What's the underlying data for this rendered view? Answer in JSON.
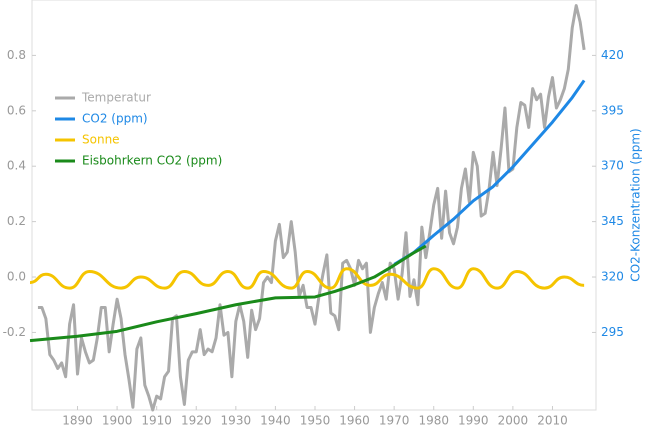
{
  "chart_data": {
    "type": "line",
    "y2label": "CO2-Konzentration (ppm)",
    "xlim": [
      1878.5,
      2021
    ],
    "xticks": [
      1890,
      1900,
      1910,
      1920,
      1930,
      1940,
      1950,
      1960,
      1970,
      1980,
      1990,
      2000,
      2010
    ],
    "ylim": [
      -0.48,
      1.0
    ],
    "yticks": [
      0.8,
      0.6,
      0.4,
      0.2,
      {
        "value": 0,
        "label": "0.0"
      },
      -0.2
    ],
    "y2lim": [
      260,
      445
    ],
    "y2ticks": [
      420,
      395,
      370,
      345,
      320,
      295
    ],
    "legend": "upper-left",
    "series": [
      {
        "name": "Temperatur",
        "color": "#aaaaaa",
        "x": [
          1880,
          1881,
          1882,
          1883,
          1884,
          1885,
          1886,
          1887,
          1888,
          1889,
          1890,
          1891,
          1892,
          1893,
          1894,
          1895,
          1896,
          1897,
          1898,
          1899,
          1900,
          1901,
          1902,
          1903,
          1904,
          1905,
          1906,
          1907,
          1908,
          1909,
          1910,
          1911,
          1912,
          1913,
          1914,
          1915,
          1916,
          1917,
          1918,
          1919,
          1920,
          1921,
          1922,
          1923,
          1924,
          1925,
          1926,
          1927,
          1928,
          1929,
          1930,
          1931,
          1932,
          1933,
          1934,
          1935,
          1936,
          1937,
          1938,
          1939,
          1940,
          1941,
          1942,
          1943,
          1944,
          1945,
          1946,
          1947,
          1948,
          1949,
          1950,
          1951,
          1952,
          1953,
          1954,
          1955,
          1956,
          1957,
          1958,
          1959,
          1960,
          1961,
          1962,
          1963,
          1964,
          1965,
          1966,
          1967,
          1968,
          1969,
          1970,
          1971,
          1972,
          1973,
          1974,
          1975,
          1976,
          1977,
          1978,
          1979,
          1980,
          1981,
          1982,
          1983,
          1984,
          1985,
          1986,
          1987,
          1988,
          1989,
          1990,
          1991,
          1992,
          1993,
          1994,
          1995,
          1996,
          1997,
          1998,
          1999,
          2000,
          2001,
          2002,
          2003,
          2004,
          2005,
          2006,
          2007,
          2008,
          2009,
          2010,
          2011,
          2012,
          2013,
          2014,
          2015,
          2016,
          2017,
          2018
        ],
        "values": [
          -0.11,
          -0.11,
          -0.15,
          -0.28,
          -0.3,
          -0.33,
          -0.31,
          -0.36,
          -0.17,
          -0.1,
          -0.35,
          -0.22,
          -0.27,
          -0.31,
          -0.3,
          -0.22,
          -0.11,
          -0.11,
          -0.27,
          -0.17,
          -0.08,
          -0.15,
          -0.28,
          -0.37,
          -0.47,
          -0.26,
          -0.22,
          -0.39,
          -0.43,
          -0.48,
          -0.43,
          -0.44,
          -0.36,
          -0.34,
          -0.15,
          -0.14,
          -0.36,
          -0.46,
          -0.3,
          -0.27,
          -0.27,
          -0.19,
          -0.28,
          -0.26,
          -0.27,
          -0.22,
          -0.1,
          -0.21,
          -0.2,
          -0.36,
          -0.16,
          -0.1,
          -0.16,
          -0.29,
          -0.12,
          -0.19,
          -0.15,
          -0.02,
          0.0,
          -0.02,
          0.13,
          0.19,
          0.07,
          0.09,
          0.2,
          0.09,
          -0.07,
          -0.03,
          -0.11,
          -0.11,
          -0.17,
          -0.07,
          0.01,
          0.08,
          -0.13,
          -0.14,
          -0.19,
          0.05,
          0.06,
          0.03,
          -0.03,
          0.06,
          0.03,
          0.05,
          -0.2,
          -0.11,
          -0.06,
          -0.02,
          -0.08,
          0.05,
          0.03,
          -0.08,
          0.01,
          0.16,
          -0.07,
          -0.01,
          -0.1,
          0.18,
          0.07,
          0.16,
          0.26,
          0.32,
          0.14,
          0.31,
          0.16,
          0.12,
          0.18,
          0.32,
          0.39,
          0.27,
          0.45,
          0.4,
          0.22,
          0.23,
          0.32,
          0.45,
          0.33,
          0.46,
          0.61,
          0.38,
          0.39,
          0.54,
          0.63,
          0.62,
          0.54,
          0.68,
          0.64,
          0.66,
          0.54,
          0.65,
          0.72,
          0.61,
          0.64,
          0.68,
          0.75,
          0.9,
          0.98,
          0.92,
          0.82
        ]
      },
      {
        "name": "CO2 (ppm)",
        "color": "#1e88e5",
        "axis": "y2",
        "x": [
          1970,
          1975,
          1980,
          1985,
          1990,
          1995,
          2000,
          2005,
          2010,
          2015,
          2018
        ],
        "values": [
          325.7,
          331.1,
          338.8,
          346.1,
          354.4,
          360.8,
          369.7,
          379.8,
          389.9,
          401.0,
          408.7
        ]
      },
      {
        "name": "Sonne",
        "color": "#f5c400",
        "x": [
          1878,
          1882,
          1888,
          1893,
          1901,
          1906,
          1912,
          1917,
          1923,
          1928,
          1933,
          1937,
          1944,
          1948,
          1954,
          1958,
          1964,
          1969,
          1976,
          1980,
          1986,
          1990,
          1996,
          2001,
          2008,
          2013,
          2018
        ],
        "values": [
          -0.02,
          0.01,
          -0.04,
          0.02,
          -0.04,
          0.0,
          -0.04,
          0.02,
          -0.03,
          0.02,
          -0.04,
          0.02,
          -0.04,
          0.02,
          -0.04,
          0.03,
          -0.03,
          0.01,
          -0.04,
          0.03,
          -0.04,
          0.03,
          -0.04,
          0.02,
          -0.04,
          0.0,
          -0.03
        ]
      },
      {
        "name": "Eisbohrkern CO2 (ppm)",
        "color": "#1a8a1a",
        "axis": "y2",
        "x": [
          1878,
          1890,
          1900,
          1910,
          1920,
          1930,
          1940,
          1950,
          1955,
          1960,
          1965,
          1970,
          1975,
          1978
        ],
        "values": [
          291.3,
          293.3,
          295.5,
          299.8,
          303.5,
          307.5,
          310.6,
          311.0,
          313.5,
          316.5,
          320.0,
          325.3,
          331.0,
          334.0
        ]
      }
    ]
  }
}
